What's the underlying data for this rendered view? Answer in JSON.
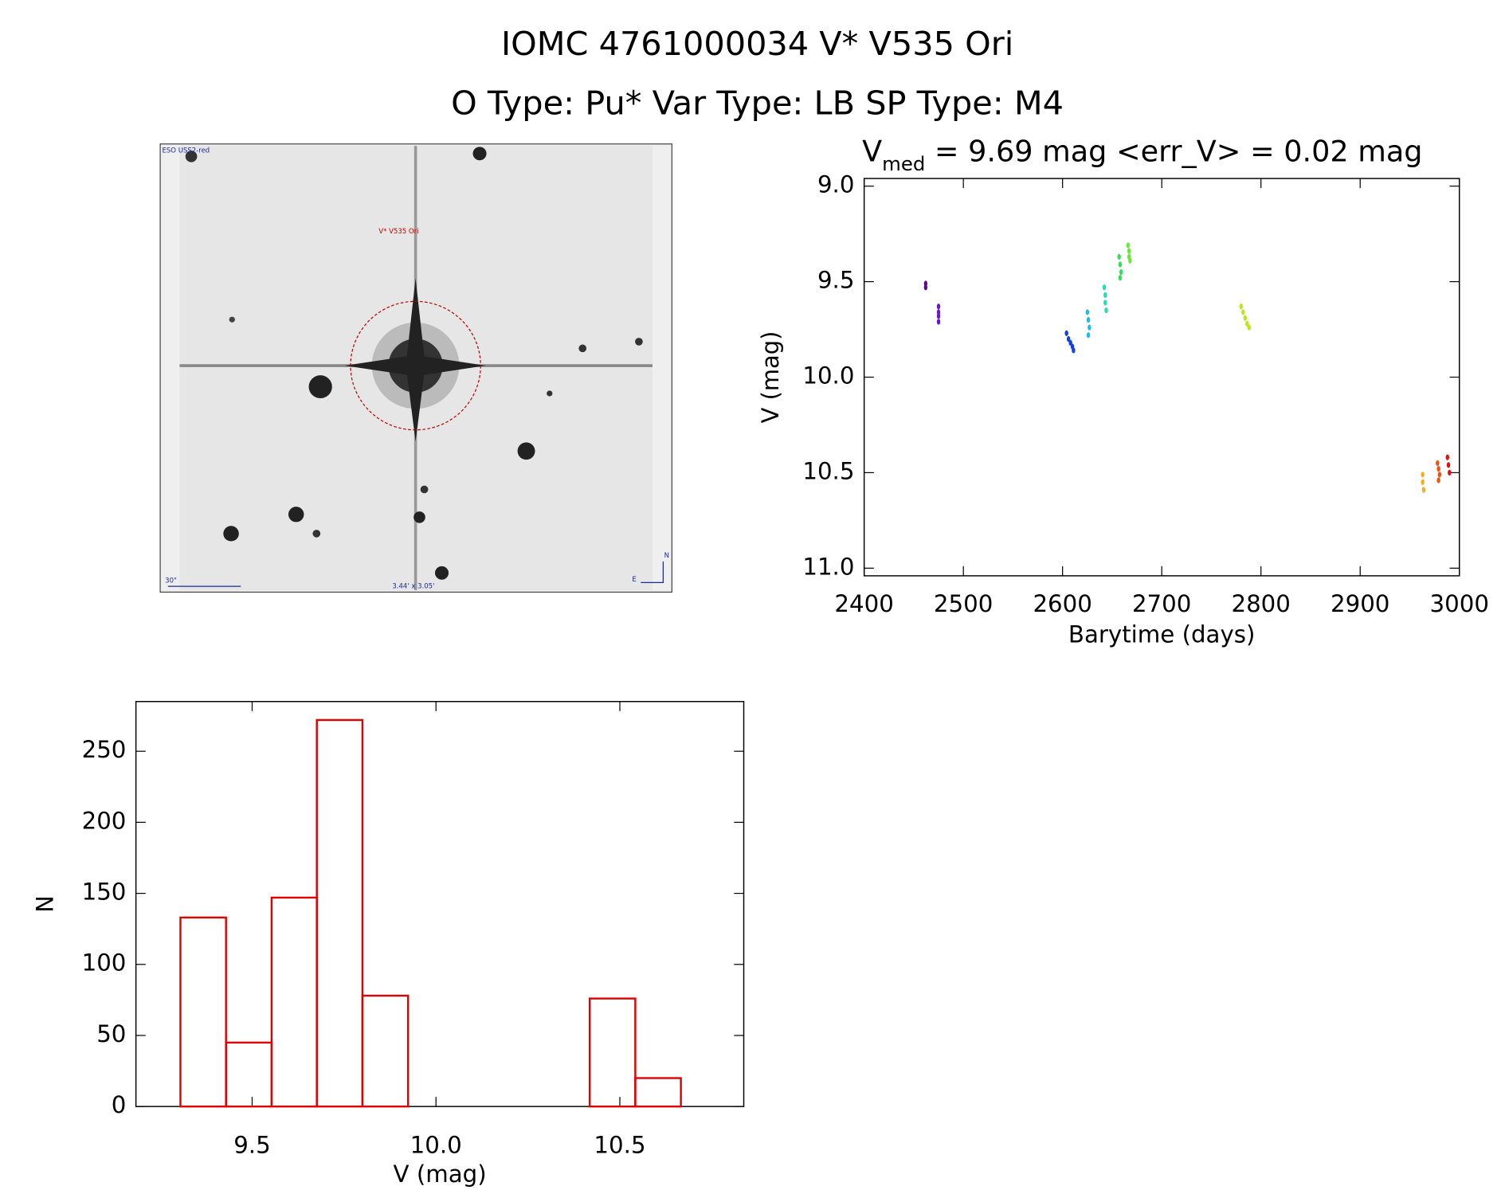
{
  "header": {
    "title": "IOMC 4761000034    V* V535 Ori",
    "subtitle": "O Type: Pu*  Var Type: LB  SP Type: M4"
  },
  "image": {
    "labels": [
      "ESO USS2-red",
      "V* V535 Ori",
      "30\"",
      "3.44' x 3.05'",
      "N",
      "E"
    ]
  },
  "chart_data": [
    {
      "type": "scatter",
      "title": [
        "V",
        "med",
        " = 9.69 mag <err_V> = 0.02 mag"
      ],
      "x_label": "Barytime (days)",
      "y_label": "V (mag)",
      "xlim": [
        2400,
        3000
      ],
      "xticks": [
        2400,
        2500,
        2600,
        2700,
        2800,
        2900,
        3000
      ],
      "ylim": [
        11.04,
        8.96
      ],
      "yticks": [
        {
          "value": 9,
          "label": "9.0"
        },
        9.5,
        {
          "value": 10,
          "label": "10.0"
        },
        10.5,
        {
          "value": 11,
          "label": "11.0"
        }
      ],
      "series": [
        {
          "color": "#5a0a8c",
          "x": [
            2462,
            2462
          ],
          "y": [
            9.51,
            9.53
          ]
        },
        {
          "color": "#6a16c8",
          "x": [
            2475,
            2475,
            2475,
            2475
          ],
          "y": [
            9.63,
            9.66,
            9.68,
            9.71
          ]
        },
        {
          "color": "#1040e0",
          "x": [
            2604,
            2606,
            2608,
            2610,
            2611
          ],
          "y": [
            9.77,
            9.8,
            9.82,
            9.84,
            9.86
          ]
        },
        {
          "color": "#20b8f0",
          "x": [
            2625,
            2626,
            2627,
            2626
          ],
          "y": [
            9.66,
            9.7,
            9.74,
            9.78
          ]
        },
        {
          "color": "#20e0b0",
          "x": [
            2642,
            2643,
            2643,
            2644
          ],
          "y": [
            9.53,
            9.57,
            9.61,
            9.65
          ]
        },
        {
          "color": "#30e050",
          "x": [
            2657,
            2658,
            2659,
            2658
          ],
          "y": [
            9.37,
            9.41,
            9.45,
            9.48
          ]
        },
        {
          "color": "#60ee30",
          "x": [
            2666,
            2667,
            2667,
            2668
          ],
          "y": [
            9.31,
            9.34,
            9.37,
            9.39
          ]
        },
        {
          "color": "#b8e818",
          "x": [
            2780,
            2782,
            2784,
            2786,
            2788
          ],
          "y": [
            9.63,
            9.66,
            9.69,
            9.72,
            9.74
          ]
        },
        {
          "color": "#f0b020",
          "x": [
            2963,
            2963,
            2964
          ],
          "y": [
            10.51,
            10.55,
            10.59
          ]
        },
        {
          "color": "#f05010",
          "x": [
            2978,
            2979,
            2980,
            2979
          ],
          "y": [
            10.45,
            10.48,
            10.51,
            10.54
          ]
        },
        {
          "color": "#e01010",
          "x": [
            2988,
            2989,
            2990
          ],
          "y": [
            10.42,
            10.46,
            10.5
          ]
        }
      ]
    },
    {
      "type": "histogram",
      "x_label": "V (mag)",
      "y_label": "N",
      "color": "#e00000",
      "bins": [
        9.305,
        9.429,
        9.553,
        9.676,
        9.8,
        9.924,
        10.047,
        10.171,
        10.295,
        10.418,
        10.542,
        10.666
      ],
      "values": [
        133,
        45,
        147,
        272,
        78,
        0,
        0,
        0,
        0,
        76,
        20
      ],
      "xlim": [
        9.184,
        10.837
      ],
      "xticks": [
        9.5,
        {
          "value": 10,
          "label": "10.0"
        },
        10.5
      ],
      "ylim": [
        0,
        285
      ],
      "yticks": [
        0,
        50,
        100,
        150,
        200,
        250
      ]
    }
  ]
}
